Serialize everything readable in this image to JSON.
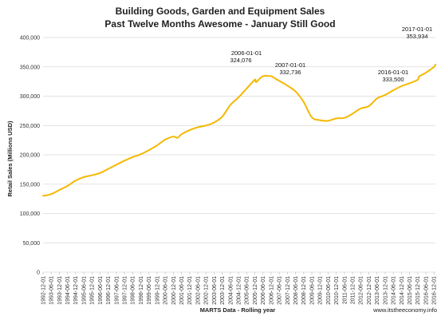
{
  "chart_data": {
    "type": "line",
    "title": "Building Goods, Garden and Equipment Sales",
    "subtitle": "Past Twelve Months Awesome - January Still Good",
    "ylabel": "Retail Sales (Millions USD)",
    "xlabel": "MARTS Data - Rolling year",
    "credit": "www.itstheeconomy.info",
    "ylim": [
      0,
      400000
    ],
    "yticks": [
      "0",
      "50,000",
      "100,000",
      "150,000",
      "200,000",
      "250,000",
      "300,000",
      "350,000",
      "400,000"
    ],
    "ytick_values": [
      0,
      50000,
      100000,
      150000,
      200000,
      250000,
      300000,
      350000,
      400000
    ],
    "xticks": [
      "1992-12-01",
      "1993-06-01",
      "1993-12-01",
      "1994-06-01",
      "1994-12-01",
      "1995-06-01",
      "1995-12-01",
      "1996-06-01",
      "1996-12-01",
      "1997-06-01",
      "1997-12-01",
      "1998-06-01",
      "1998-12-01",
      "1999-06-01",
      "1999-12-01",
      "2000-06-01",
      "2000-12-01",
      "2001-06-01",
      "2001-12-01",
      "2002-06-01",
      "2002-12-01",
      "2003-06-01",
      "2003-12-01",
      "2004-06-01",
      "2004-12-01",
      "2005-06-01",
      "2005-12-01",
      "2006-06-01",
      "2006-12-01",
      "2007-06-01",
      "2007-12-01",
      "2008-06-01",
      "2008-12-01",
      "2009-06-01",
      "2009-12-01",
      "2010-06-01",
      "2010-12-01",
      "2011-06-01",
      "2011-12-01",
      "2012-06-01",
      "2012-12-01",
      "2013-06-01",
      "2013-12-01",
      "2014-06-01",
      "2014-12-01",
      "2015-06-01",
      "2015-12-01",
      "2016-06-01",
      "2016-12-01"
    ],
    "line_color": "#f5b800",
    "grid": true,
    "series": [
      {
        "x": [
          "1992-12-01",
          "1993-06-01",
          "1993-12-01",
          "1994-06-01",
          "1994-12-01",
          "1995-06-01",
          "1995-12-01",
          "1996-06-01",
          "1996-12-01",
          "1997-06-01",
          "1997-12-01",
          "1998-06-01",
          "1998-12-01",
          "1999-06-01",
          "1999-12-01",
          "2000-06-01",
          "2000-12-01",
          "2001-03-01",
          "2001-06-01",
          "2001-12-01",
          "2002-06-01",
          "2002-12-01",
          "2003-06-01",
          "2003-12-01",
          "2004-06-01",
          "2004-12-01",
          "2005-06-01",
          "2005-12-01",
          "2006-01-01",
          "2006-06-01",
          "2006-12-01",
          "2007-01-01",
          "2007-06-01",
          "2007-12-01",
          "2008-06-01",
          "2008-12-01",
          "2009-06-01",
          "2009-12-01",
          "2010-06-01",
          "2010-12-01",
          "2011-06-01",
          "2011-12-01",
          "2012-06-01",
          "2012-12-01",
          "2013-06-01",
          "2013-12-01",
          "2014-06-01",
          "2014-12-01",
          "2015-06-01",
          "2015-12-01",
          "2016-01-01",
          "2016-06-01",
          "2016-12-01",
          "2017-01-01"
        ],
        "y": [
          130000,
          133000,
          140000,
          147000,
          156000,
          162000,
          165000,
          169000,
          176000,
          183000,
          190000,
          196000,
          201000,
          208000,
          216000,
          226000,
          231000,
          229000,
          235000,
          242000,
          247000,
          250000,
          255000,
          265000,
          285000,
          298000,
          313000,
          328000,
          324076,
          334000,
          334000,
          332736,
          326000,
          318000,
          308000,
          290000,
          264000,
          259000,
          258000,
          262000,
          263000,
          270000,
          279000,
          283000,
          296000,
          302000,
          310000,
          317000,
          322000,
          328000,
          333500,
          340000,
          350000,
          353934
        ]
      }
    ],
    "annotations": [
      {
        "date": "2006-01-01",
        "value": "324,076"
      },
      {
        "date": "2007-01-01",
        "value": "332,736"
      },
      {
        "date": "2016-01-01",
        "value": "333,500"
      },
      {
        "date": "2017-01-01",
        "value": "353,934"
      }
    ]
  }
}
